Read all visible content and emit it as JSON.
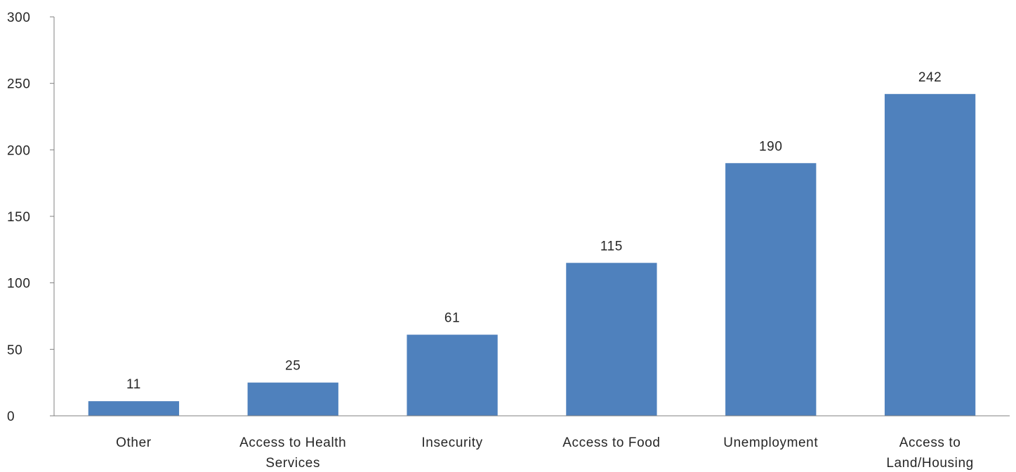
{
  "chart_data": {
    "type": "bar",
    "categories": [
      "Other",
      "Access to Health Services",
      "Insecurity",
      "Access to Food",
      "Unemployment",
      "Access to Land/Housing"
    ],
    "category_lines": [
      [
        "Other"
      ],
      [
        "Access to Health",
        "Services"
      ],
      [
        "Insecurity"
      ],
      [
        "Access to Food"
      ],
      [
        "Unemployment"
      ],
      [
        "Access to",
        "Land/Housing"
      ]
    ],
    "values": [
      11,
      25,
      61,
      115,
      190,
      242
    ],
    "value_labels": [
      "11",
      "25",
      "61",
      "115",
      "190",
      "242"
    ],
    "yticks": [
      "0",
      "50",
      "100",
      "150",
      "200",
      "250",
      "300"
    ],
    "ylim": [
      0,
      300
    ],
    "grid": false,
    "legend": "none",
    "bar_color": "#4f81bd",
    "axis_color": "#808080"
  }
}
